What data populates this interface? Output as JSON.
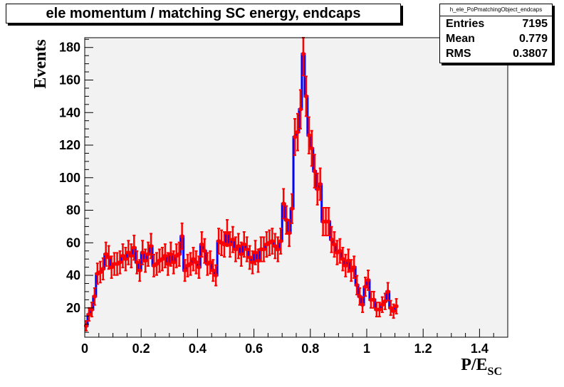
{
  "chart_data": {
    "type": "histogram",
    "title": "ele momentum / matching SC energy, endcaps",
    "xlabel_main": "P/E",
    "xlabel_sub": "SC",
    "ylabel": "Events",
    "xlim": [
      0,
      1.5
    ],
    "ylim": [
      2,
      186
    ],
    "x_ticks": [
      0,
      0.2,
      0.4,
      0.6,
      0.8,
      1,
      1.2,
      1.4
    ],
    "x_tick_labels": [
      "0",
      "0.2",
      "0.4",
      "0.6",
      "0.8",
      "1",
      "1.2",
      "1.4"
    ],
    "y_ticks": [
      20,
      40,
      60,
      80,
      100,
      120,
      140,
      160,
      180
    ],
    "y_tick_labels": [
      "20",
      "40",
      "60",
      "80",
      "100",
      "120",
      "140",
      "160",
      "180"
    ],
    "bin_width": 0.01,
    "bin_centers_start": 0.005,
    "values": [
      9,
      16,
      19,
      27,
      41,
      42,
      44,
      53,
      51,
      45,
      47,
      47,
      48,
      52,
      50,
      54,
      52,
      57,
      48,
      43,
      54,
      49,
      53,
      58,
      46,
      47,
      49,
      50,
      52,
      47,
      53,
      48,
      52,
      53,
      64,
      43,
      46,
      47,
      50,
      48,
      45,
      59,
      55,
      47,
      48,
      43,
      40,
      61,
      60,
      59,
      66,
      59,
      62,
      56,
      58,
      53,
      59,
      56,
      51,
      48,
      54,
      49,
      56,
      56,
      59,
      60,
      61,
      58,
      56,
      61,
      84,
      74,
      66,
      81,
      125,
      128,
      142,
      176,
      150,
      126,
      118,
      104,
      93,
      96,
      73,
      73,
      73,
      62,
      59,
      54,
      55,
      50,
      46,
      49,
      43,
      45,
      34,
      27,
      22,
      33,
      37,
      25,
      25,
      19,
      19,
      22,
      24,
      30,
      20,
      18,
      21
    ],
    "error_bar_color": "#ff0000",
    "line_color": "#0000ff",
    "frame_color": "#f2f2f2"
  },
  "stats": {
    "name": "h_ele_PoPmatchingObject_endcaps",
    "rows": [
      {
        "label": "Entries",
        "value": "7195"
      },
      {
        "label": "Mean",
        "value": "0.779"
      },
      {
        "label": "RMS",
        "value": "0.3807"
      }
    ]
  }
}
